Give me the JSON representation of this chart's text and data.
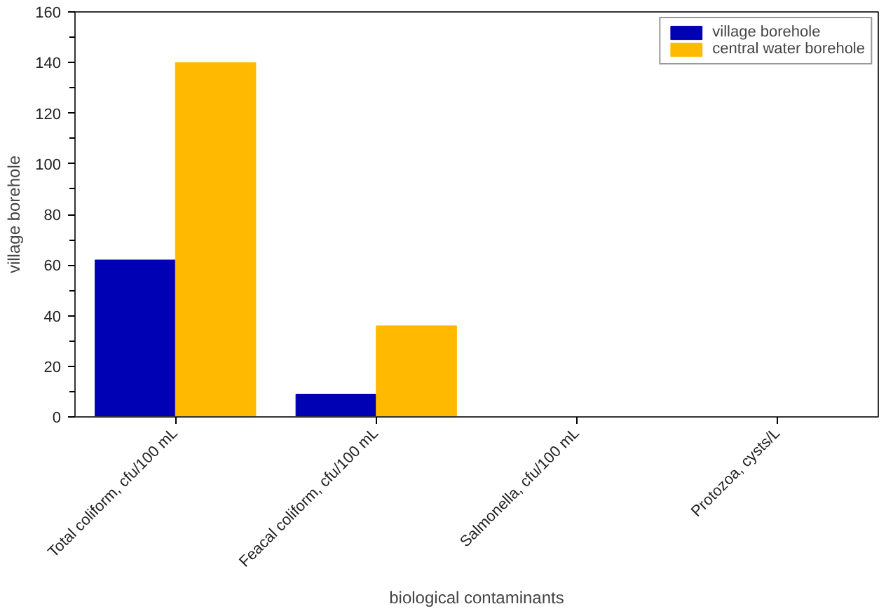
{
  "chart_data": {
    "type": "bar",
    "xlabel": "biological contaminants",
    "ylabel": "village borehole",
    "categories": [
      "Total coliform, cfu/100 mL",
      "Feacal coliform, cfu/100 mL",
      "Salmonella, cfu/100 mL",
      "Protozoa, cysts/L"
    ],
    "series": [
      {
        "name": "village borehole",
        "color": "#0000b4",
        "values": [
          62,
          9,
          0,
          0
        ]
      },
      {
        "name": "central water borehole",
        "color": "#ffb900",
        "values": [
          140,
          36,
          0,
          0
        ]
      }
    ],
    "ylim": [
      0,
      160
    ],
    "yticks": [
      0,
      20,
      40,
      60,
      80,
      100,
      120,
      140,
      160
    ],
    "grid": false,
    "legend": "top right"
  }
}
